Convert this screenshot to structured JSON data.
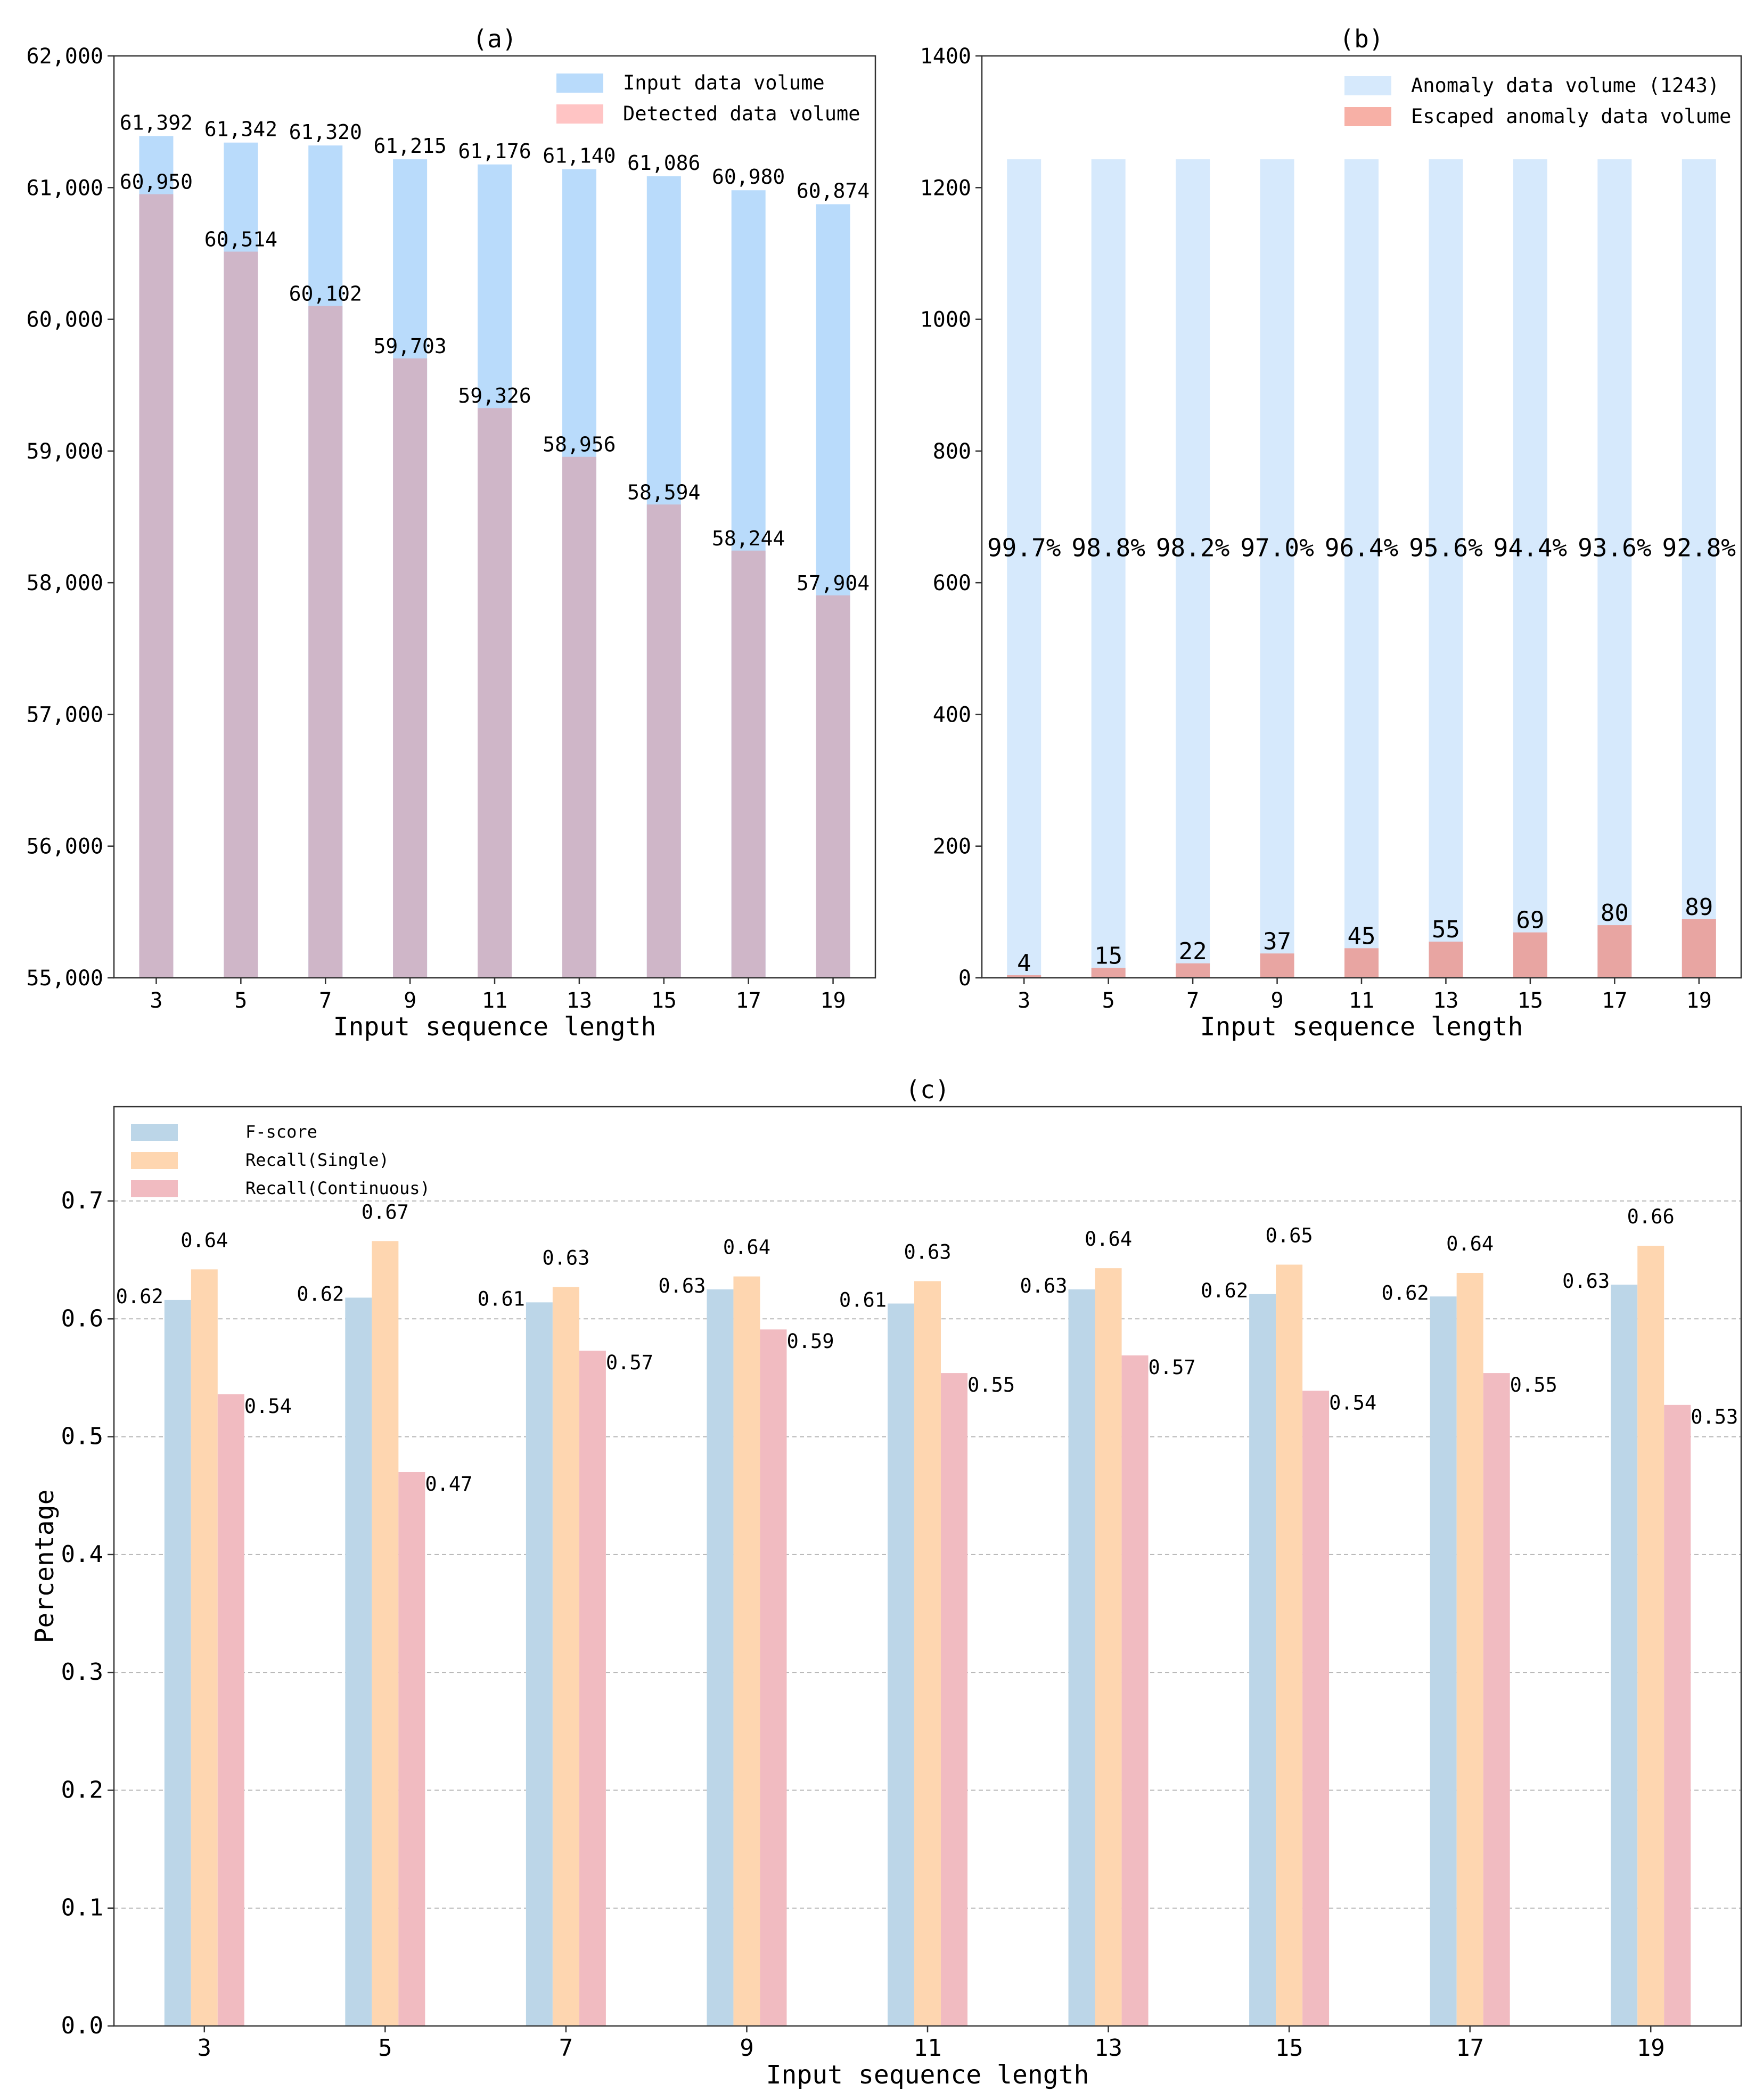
{
  "chart_data": [
    {
      "id": "a",
      "type": "bar",
      "title": "(a)",
      "xlabel": "Input sequence length",
      "ylabel": "",
      "categories": [
        "3",
        "5",
        "7",
        "9",
        "11",
        "13",
        "15",
        "17",
        "19"
      ],
      "ylim": [
        55000,
        62000
      ],
      "yticks": [
        55000,
        56000,
        57000,
        58000,
        59000,
        60000,
        61000,
        62000
      ],
      "ytick_labels": [
        "55,000",
        "56,000",
        "57,000",
        "58,000",
        "59,000",
        "60,000",
        "61,000",
        "62,000"
      ],
      "overlap": true,
      "series": [
        {
          "name": "Input data volume",
          "color": "#b9dbfb",
          "values": [
            61392,
            61342,
            61320,
            61215,
            61176,
            61140,
            61086,
            60980,
            60874
          ],
          "labels": [
            "61,392",
            "61,342",
            "61,320",
            "61,215",
            "61,176",
            "61,140",
            "61,086",
            "60,980",
            "60,874"
          ]
        },
        {
          "name": "Detected data volume",
          "color": "#ffc4c4",
          "overlap_color": "#cfb6c8",
          "values": [
            60950,
            60514,
            60102,
            59703,
            59326,
            58956,
            58594,
            58244,
            57904
          ],
          "labels": [
            "60,950",
            "60,514",
            "60,102",
            "59,703",
            "59,326",
            "58,956",
            "58,594",
            "58,244",
            "57,904"
          ]
        }
      ],
      "legend": "top-right",
      "grid": false
    },
    {
      "id": "b",
      "type": "bar",
      "title": "(b)",
      "xlabel": "Input sequence length",
      "ylabel": "",
      "categories": [
        "3",
        "5",
        "7",
        "9",
        "11",
        "13",
        "15",
        "17",
        "19"
      ],
      "ylim": [
        0,
        1400
      ],
      "yticks": [
        0,
        200,
        400,
        600,
        800,
        1000,
        1200,
        1400
      ],
      "ytick_labels": [
        "0",
        "200",
        "400",
        "600",
        "800",
        "1000",
        "1200",
        "1400"
      ],
      "overlap": true,
      "series": [
        {
          "name": "Anomaly data volume (1243)",
          "color": "#d6e9fc",
          "values": [
            1243,
            1243,
            1243,
            1243,
            1243,
            1243,
            1243,
            1243,
            1243
          ]
        },
        {
          "name": "Escaped anomaly data volume",
          "color": "#f7b0a6",
          "overlap_color": "#e8a5a2",
          "values": [
            4,
            15,
            22,
            37,
            45,
            55,
            69,
            80,
            89
          ],
          "labels": [
            "4",
            "15",
            "22",
            "37",
            "45",
            "55",
            "69",
            "80",
            "89"
          ]
        }
      ],
      "annotations": [
        "99.7%",
        "98.8%",
        "98.2%",
        "97.0%",
        "96.4%",
        "95.6%",
        "94.4%",
        "93.6%",
        "92.8%"
      ],
      "annotation_y": 640,
      "legend": "top-right",
      "grid": false
    },
    {
      "id": "c",
      "type": "bar",
      "title": "(c)",
      "xlabel": "Input sequence length",
      "ylabel": "Percentage",
      "categories": [
        "3",
        "5",
        "7",
        "9",
        "11",
        "13",
        "15",
        "17",
        "19"
      ],
      "ylim": [
        0,
        0.78
      ],
      "yticks": [
        0,
        0.1,
        0.2,
        0.3,
        0.4,
        0.5,
        0.6,
        0.7
      ],
      "ytick_labels": [
        "0.0",
        "0.1",
        "0.2",
        "0.3",
        "0.4",
        "0.5",
        "0.6",
        "0.7"
      ],
      "overlap": false,
      "series": [
        {
          "name": "F-score",
          "color": "#bcd6e8",
          "values": [
            0.616,
            0.618,
            0.614,
            0.625,
            0.613,
            0.625,
            0.621,
            0.619,
            0.629
          ],
          "labels": [
            "0.62",
            "0.62",
            "0.61",
            "0.63",
            "0.61",
            "0.63",
            "0.62",
            "0.62",
            "0.63"
          ]
        },
        {
          "name": "Recall(Single)",
          "color": "#fed6b0",
          "values": [
            0.642,
            0.666,
            0.627,
            0.636,
            0.632,
            0.643,
            0.646,
            0.639,
            0.662
          ],
          "labels": [
            "0.64",
            "0.67",
            "0.63",
            "0.64",
            "0.63",
            "0.64",
            "0.65",
            "0.64",
            "0.66"
          ]
        },
        {
          "name": "Recall(Continuous)",
          "color": "#f1bbc1",
          "values": [
            0.536,
            0.47,
            0.573,
            0.591,
            0.554,
            0.569,
            0.539,
            0.554,
            0.527
          ],
          "labels": [
            "0.54",
            "0.47",
            "0.57",
            "0.59",
            "0.55",
            "0.57",
            "0.54",
            "0.55",
            "0.53"
          ]
        }
      ],
      "legend": "top-left",
      "grid": true
    }
  ]
}
